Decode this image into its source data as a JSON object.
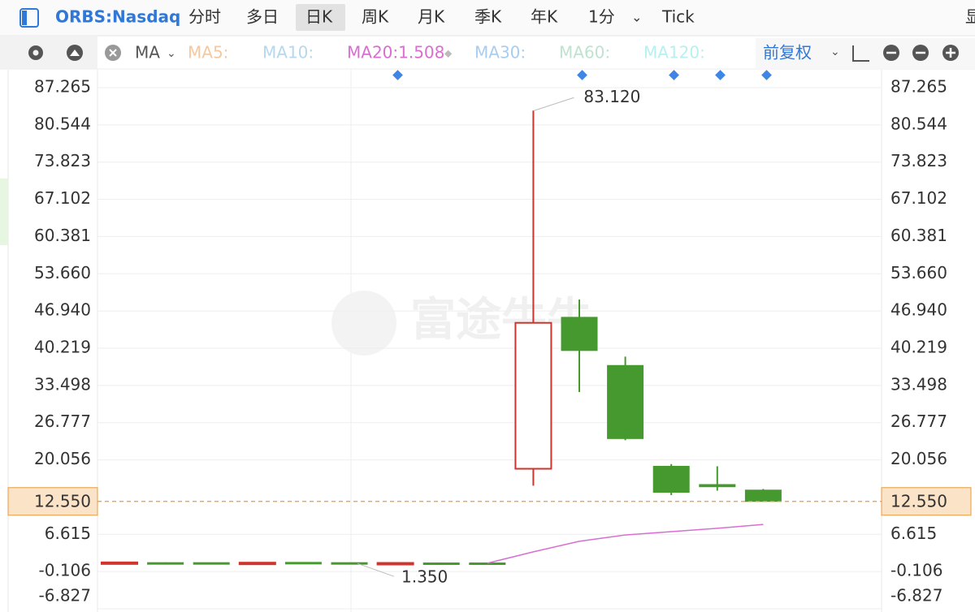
{
  "toolbar": {
    "symbol": "ORBS:Nasdaq",
    "periods": [
      "分时",
      "多日",
      "日K",
      "周K",
      "月K",
      "季K",
      "年K",
      "1分",
      "Tick"
    ],
    "cut_off": "显"
  },
  "indicator_bar": {
    "indicator": "MA",
    "ma_before": [
      "MA5:",
      "MA10:"
    ],
    "ma_after": [
      "MA30:",
      "MA60:",
      "MA120:"
    ],
    "adjust": "前复权"
  },
  "watermark": "富途牛牛",
  "chart_data": {
    "type": "candlestick",
    "categories": [
      null,
      null,
      null,
      null,
      null,
      null,
      null,
      null,
      null,
      null,
      null,
      null,
      null,
      null,
      null
    ],
    "open": [
      1.45,
      1.5,
      1.5,
      1.4,
      1.55,
      1.5,
      1.4,
      1.45,
      1.45,
      18.45,
      45.8,
      37.1,
      18.9,
      15.6,
      14.6
    ],
    "high": [
      1.6,
      1.55,
      1.5,
      1.55,
      1.6,
      1.55,
      1.5,
      1.5,
      1.5,
      83.12,
      49.0,
      38.7,
      19.3,
      18.9,
      14.8
    ],
    "low": [
      1.4,
      1.4,
      1.4,
      1.4,
      1.45,
      1.35,
      1.38,
      1.4,
      1.38,
      15.4,
      32.3,
      23.6,
      13.7,
      14.5,
      12.55
    ],
    "close": [
      1.55,
      1.45,
      1.4,
      1.5,
      1.5,
      1.4,
      1.45,
      1.4,
      1.38,
      44.8,
      39.8,
      23.9,
      14.2,
      15.2,
      12.55
    ],
    "up_color": "#d0342c",
    "down_color": "#46992e",
    "lines": [
      {
        "name": "MA20:1.508",
        "color": "#d86fd0",
        "values": [
          null,
          null,
          null,
          null,
          null,
          null,
          null,
          null,
          1.4,
          3.45,
          5.35,
          6.5,
          7.1,
          7.7,
          8.4
        ]
      }
    ],
    "high_label": {
      "value": 83.12,
      "label": "83.120"
    },
    "low_label": {
      "value": 1.35,
      "label": "1.350"
    },
    "last_price": {
      "value": 12.55,
      "label": "12.550"
    },
    "ylim": [
      -6.827,
      89.9
    ],
    "yticks": [
      87.265,
      80.544,
      73.823,
      67.102,
      60.381,
      {
        "value": 53.66,
        "label": "53.660"
      },
      {
        "value": 46.94,
        "label": "46.940"
      },
      40.219,
      33.498,
      26.777,
      20.056,
      6.615,
      -0.106,
      -6.827
    ],
    "grid": true
  }
}
